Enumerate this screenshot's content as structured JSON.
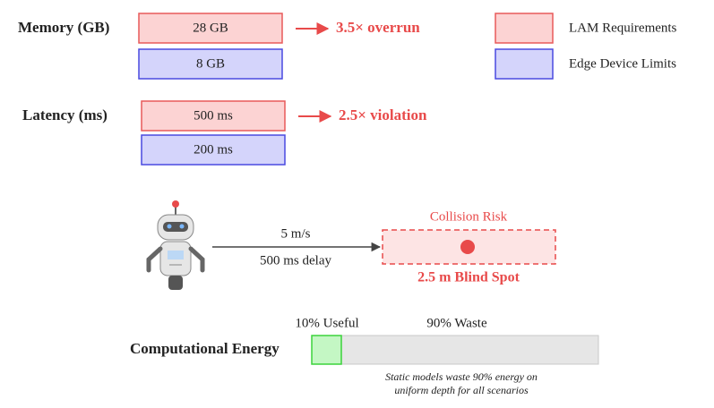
{
  "memory": {
    "label": "Memory (GB)",
    "lam": "28 GB",
    "edge": "8 GB",
    "ratio": "3.5× overrun"
  },
  "latency": {
    "label": "Latency (ms)",
    "lam": "500 ms",
    "edge": "200 ms",
    "ratio": "2.5× violation"
  },
  "legend": {
    "lam": "LAM Requirements",
    "edge": "Edge Device Limits"
  },
  "scenario": {
    "speed": "5 m/s",
    "delay": "500 ms delay",
    "risk": "Collision Risk",
    "blind_spot": "2.5 m Blind Spot"
  },
  "energy": {
    "label": "Computational Energy",
    "useful": "10% Useful",
    "waste": "90% Waste",
    "note": [
      "Static models waste 90% energy on",
      "uniform depth for all scenarios"
    ]
  }
}
